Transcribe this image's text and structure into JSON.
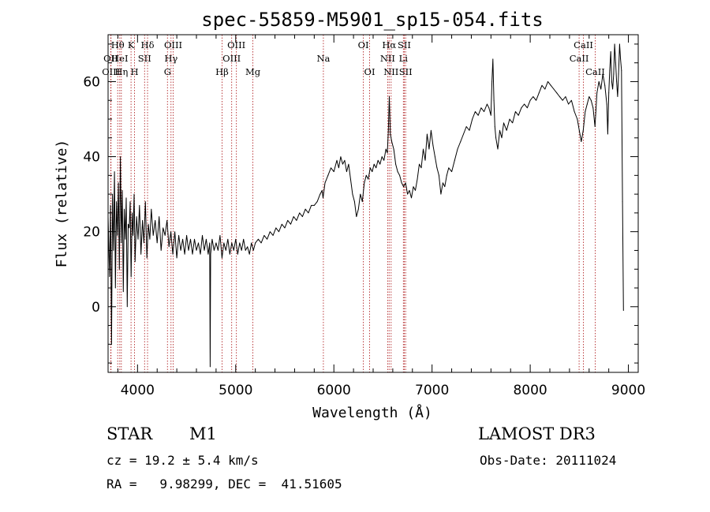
{
  "chart_data": {
    "type": "line",
    "title": "spec-55859-M5901_sp15-054.fits",
    "xlabel": "Wavelength (Å)",
    "ylabel": "Flux (relative)",
    "xlim": [
      3700,
      9100
    ],
    "ylim": [
      -17.5,
      72.5
    ],
    "x_ticks": [
      4000,
      5000,
      6000,
      7000,
      8000,
      9000
    ],
    "y_ticks": [
      0,
      20,
      40,
      60
    ],
    "series": [
      {
        "name": "flux",
        "points": [
          [
            3700,
            24
          ],
          [
            3715,
            8
          ],
          [
            3725,
            27
          ],
          [
            3735,
            -10
          ],
          [
            3745,
            30
          ],
          [
            3755,
            15
          ],
          [
            3765,
            36
          ],
          [
            3775,
            5
          ],
          [
            3785,
            28
          ],
          [
            3795,
            19
          ],
          [
            3805,
            33
          ],
          [
            3815,
            10
          ],
          [
            3825,
            40
          ],
          [
            3835,
            17
          ],
          [
            3845,
            31
          ],
          [
            3855,
            4
          ],
          [
            3865,
            26
          ],
          [
            3875,
            18
          ],
          [
            3885,
            29
          ],
          [
            3895,
            0
          ],
          [
            3905,
            22
          ],
          [
            3915,
            21
          ],
          [
            3925,
            28
          ],
          [
            3935,
            8
          ],
          [
            3945,
            25
          ],
          [
            3955,
            19
          ],
          [
            3965,
            30
          ],
          [
            3975,
            12
          ],
          [
            3990,
            24
          ],
          [
            4005,
            18
          ],
          [
            4020,
            27
          ],
          [
            4035,
            14
          ],
          [
            4050,
            23
          ],
          [
            4065,
            17
          ],
          [
            4080,
            28
          ],
          [
            4095,
            13
          ],
          [
            4110,
            22
          ],
          [
            4125,
            18
          ],
          [
            4140,
            26
          ],
          [
            4160,
            19
          ],
          [
            4180,
            23
          ],
          [
            4200,
            17
          ],
          [
            4220,
            24
          ],
          [
            4240,
            15
          ],
          [
            4260,
            21
          ],
          [
            4280,
            19
          ],
          [
            4300,
            23
          ],
          [
            4320,
            16
          ],
          [
            4340,
            20
          ],
          [
            4360,
            14
          ],
          [
            4380,
            20
          ],
          [
            4400,
            13
          ],
          [
            4420,
            19
          ],
          [
            4440,
            15
          ],
          [
            4460,
            18
          ],
          [
            4480,
            14
          ],
          [
            4500,
            19
          ],
          [
            4520,
            15
          ],
          [
            4540,
            18
          ],
          [
            4560,
            14
          ],
          [
            4580,
            18
          ],
          [
            4600,
            15
          ],
          [
            4620,
            17
          ],
          [
            4640,
            14
          ],
          [
            4660,
            19
          ],
          [
            4680,
            15
          ],
          [
            4700,
            18
          ],
          [
            4720,
            14
          ],
          [
            4735,
            17
          ],
          [
            4740,
            -16
          ],
          [
            4745,
            14
          ],
          [
            4760,
            18
          ],
          [
            4780,
            15
          ],
          [
            4800,
            17
          ],
          [
            4820,
            15
          ],
          [
            4840,
            19
          ],
          [
            4860,
            13
          ],
          [
            4880,
            17
          ],
          [
            4900,
            15
          ],
          [
            4920,
            18
          ],
          [
            4940,
            14
          ],
          [
            4960,
            17
          ],
          [
            4980,
            15
          ],
          [
            5000,
            18
          ],
          [
            5020,
            14
          ],
          [
            5040,
            17
          ],
          [
            5060,
            15
          ],
          [
            5080,
            18
          ],
          [
            5100,
            15
          ],
          [
            5120,
            16
          ],
          [
            5140,
            14
          ],
          [
            5160,
            17
          ],
          [
            5180,
            15
          ],
          [
            5200,
            17
          ],
          [
            5230,
            18
          ],
          [
            5260,
            17
          ],
          [
            5290,
            19
          ],
          [
            5320,
            18
          ],
          [
            5350,
            20
          ],
          [
            5380,
            19
          ],
          [
            5410,
            21
          ],
          [
            5440,
            20
          ],
          [
            5470,
            22
          ],
          [
            5500,
            21
          ],
          [
            5530,
            23
          ],
          [
            5560,
            22
          ],
          [
            5590,
            24
          ],
          [
            5620,
            23
          ],
          [
            5650,
            25
          ],
          [
            5680,
            24
          ],
          [
            5710,
            26
          ],
          [
            5740,
            25
          ],
          [
            5770,
            27
          ],
          [
            5800,
            27
          ],
          [
            5830,
            28
          ],
          [
            5860,
            30
          ],
          [
            5880,
            31
          ],
          [
            5890,
            29
          ],
          [
            5910,
            33
          ],
          [
            5940,
            35
          ],
          [
            5970,
            37
          ],
          [
            6000,
            36
          ],
          [
            6030,
            39
          ],
          [
            6050,
            37
          ],
          [
            6070,
            40
          ],
          [
            6090,
            38
          ],
          [
            6110,
            39
          ],
          [
            6130,
            36
          ],
          [
            6150,
            38
          ],
          [
            6170,
            34
          ],
          [
            6190,
            30
          ],
          [
            6210,
            28
          ],
          [
            6230,
            24
          ],
          [
            6250,
            26
          ],
          [
            6270,
            30
          ],
          [
            6290,
            28
          ],
          [
            6310,
            33
          ],
          [
            6330,
            35
          ],
          [
            6350,
            34
          ],
          [
            6370,
            37
          ],
          [
            6390,
            36
          ],
          [
            6410,
            38
          ],
          [
            6430,
            37
          ],
          [
            6450,
            39
          ],
          [
            6470,
            38
          ],
          [
            6490,
            40
          ],
          [
            6510,
            39
          ],
          [
            6530,
            42
          ],
          [
            6545,
            41
          ],
          [
            6555,
            47
          ],
          [
            6565,
            56
          ],
          [
            6575,
            46
          ],
          [
            6590,
            44
          ],
          [
            6610,
            42
          ],
          [
            6630,
            38
          ],
          [
            6650,
            36
          ],
          [
            6670,
            35
          ],
          [
            6690,
            33
          ],
          [
            6710,
            32
          ],
          [
            6730,
            33
          ],
          [
            6750,
            30
          ],
          [
            6770,
            31
          ],
          [
            6790,
            29
          ],
          [
            6810,
            32
          ],
          [
            6830,
            31
          ],
          [
            6850,
            34
          ],
          [
            6870,
            38
          ],
          [
            6890,
            37
          ],
          [
            6910,
            42
          ],
          [
            6930,
            39
          ],
          [
            6950,
            46
          ],
          [
            6970,
            42
          ],
          [
            6990,
            47
          ],
          [
            7010,
            43
          ],
          [
            7030,
            40
          ],
          [
            7050,
            37
          ],
          [
            7070,
            35
          ],
          [
            7090,
            30
          ],
          [
            7110,
            33
          ],
          [
            7130,
            32
          ],
          [
            7150,
            35
          ],
          [
            7170,
            37
          ],
          [
            7200,
            36
          ],
          [
            7230,
            39
          ],
          [
            7260,
            42
          ],
          [
            7290,
            44
          ],
          [
            7320,
            46
          ],
          [
            7350,
            48
          ],
          [
            7380,
            47
          ],
          [
            7410,
            50
          ],
          [
            7440,
            52
          ],
          [
            7470,
            51
          ],
          [
            7500,
            53
          ],
          [
            7530,
            52
          ],
          [
            7560,
            54
          ],
          [
            7580,
            53
          ],
          [
            7600,
            51
          ],
          [
            7610,
            60
          ],
          [
            7620,
            66
          ],
          [
            7630,
            55
          ],
          [
            7640,
            48
          ],
          [
            7650,
            45
          ],
          [
            7670,
            42
          ],
          [
            7690,
            47
          ],
          [
            7710,
            45
          ],
          [
            7730,
            49
          ],
          [
            7760,
            47
          ],
          [
            7790,
            50
          ],
          [
            7820,
            49
          ],
          [
            7850,
            52
          ],
          [
            7880,
            51
          ],
          [
            7910,
            53
          ],
          [
            7940,
            54
          ],
          [
            7970,
            53
          ],
          [
            8000,
            55
          ],
          [
            8030,
            56
          ],
          [
            8060,
            55
          ],
          [
            8090,
            57
          ],
          [
            8120,
            59
          ],
          [
            8150,
            58
          ],
          [
            8180,
            60
          ],
          [
            8210,
            59
          ],
          [
            8240,
            58
          ],
          [
            8270,
            57
          ],
          [
            8300,
            56
          ],
          [
            8330,
            55
          ],
          [
            8360,
            56
          ],
          [
            8390,
            54
          ],
          [
            8420,
            55
          ],
          [
            8450,
            52
          ],
          [
            8480,
            50
          ],
          [
            8500,
            47
          ],
          [
            8520,
            44
          ],
          [
            8540,
            47
          ],
          [
            8560,
            52
          ],
          [
            8580,
            54
          ],
          [
            8600,
            56
          ],
          [
            8620,
            55
          ],
          [
            8640,
            53
          ],
          [
            8660,
            48
          ],
          [
            8680,
            57
          ],
          [
            8700,
            60
          ],
          [
            8720,
            58
          ],
          [
            8740,
            62
          ],
          [
            8760,
            59
          ],
          [
            8780,
            54
          ],
          [
            8790,
            46
          ],
          [
            8800,
            57
          ],
          [
            8810,
            63
          ],
          [
            8820,
            68
          ],
          [
            8830,
            60
          ],
          [
            8840,
            58
          ],
          [
            8850,
            62
          ],
          [
            8860,
            70
          ],
          [
            8870,
            65
          ],
          [
            8880,
            60
          ],
          [
            8890,
            56
          ],
          [
            8900,
            62
          ],
          [
            8910,
            70
          ],
          [
            8920,
            66
          ],
          [
            8930,
            63
          ],
          [
            8940,
            28
          ],
          [
            8950,
            -1
          ]
        ]
      }
    ],
    "line_marks": [
      {
        "label": "Hθ",
        "x": 3798,
        "row": 1
      },
      {
        "label": "OII",
        "x": 3727,
        "row": 2
      },
      {
        "label": "OIII",
        "x": 3730,
        "row": 3
      },
      {
        "label": "HeI",
        "x": 3819,
        "row": 2
      },
      {
        "label": "Hη",
        "x": 3835,
        "row": 3
      },
      {
        "label": "K",
        "x": 3934,
        "row": 1
      },
      {
        "label": "H",
        "x": 3969,
        "row": 3
      },
      {
        "label": "SII",
        "x": 4072,
        "row": 2
      },
      {
        "label": "Hδ",
        "x": 4102,
        "row": 1
      },
      {
        "label": "OIII",
        "x": 4363,
        "row": 1
      },
      {
        "label": "Hγ",
        "x": 4341,
        "row": 2
      },
      {
        "label": "G",
        "x": 4305,
        "row": 3
      },
      {
        "label": "OIII",
        "x": 5007,
        "row": 1
      },
      {
        "label": "OIII",
        "x": 4959,
        "row": 2
      },
      {
        "label": "Hβ",
        "x": 4861,
        "row": 3
      },
      {
        "label": "Mg",
        "x": 5175,
        "row": 3
      },
      {
        "label": "Na",
        "x": 5893,
        "row": 2
      },
      {
        "label": "OI",
        "x": 6300,
        "row": 1
      },
      {
        "label": "OI",
        "x": 6364,
        "row": 3
      },
      {
        "label": "Hα",
        "x": 6563,
        "row": 1
      },
      {
        "label": "SII",
        "x": 6717,
        "row": 1
      },
      {
        "label": "NII",
        "x": 6548,
        "row": 2
      },
      {
        "label": "Li",
        "x": 6708,
        "row": 2
      },
      {
        "label": "NII",
        "x": 6583,
        "row": 3
      },
      {
        "label": "SII",
        "x": 6731,
        "row": 3
      },
      {
        "label": "CaII",
        "x": 8542,
        "row": 1
      },
      {
        "label": "CaII",
        "x": 8498,
        "row": 2
      },
      {
        "label": "CaII",
        "x": 8662,
        "row": 3
      }
    ]
  },
  "info": {
    "object_class": "STAR",
    "subclass": "M1",
    "survey": "LAMOST DR3",
    "redshift": "cz = 19.2 ± 5.4 km/s",
    "obs_date": "Obs-Date: 20111024",
    "coords": "RA =   9.98299, DEC =  41.51605"
  }
}
